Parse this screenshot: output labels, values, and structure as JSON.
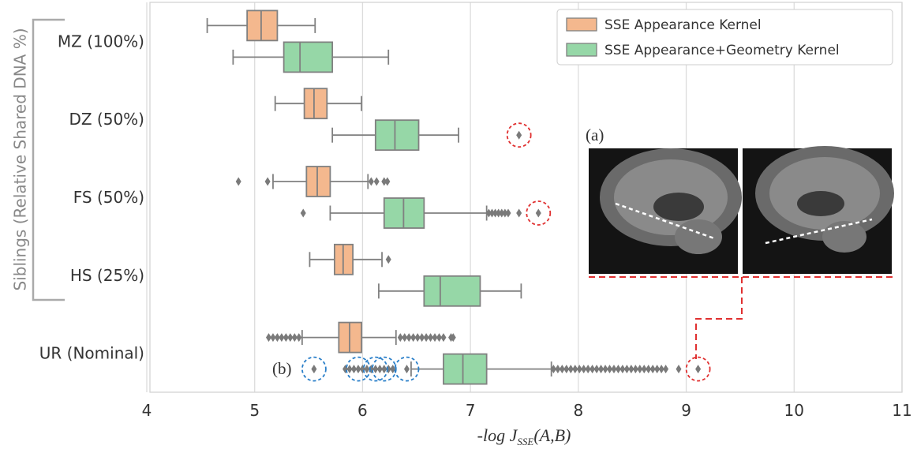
{
  "chart_data": {
    "type": "box",
    "categories": [
      "MZ (100%)",
      "DZ (50%)",
      "FS (50%)",
      "HS (25%)",
      "UR (Nominal)"
    ],
    "group_label": "Siblings  (Relative Shared DNA %)",
    "xlabel": {
      "main": "-log J",
      "sub": "SSE",
      "tail": "(A,B)"
    },
    "xlim": [
      4,
      11
    ],
    "xticks": [
      4,
      5,
      6,
      7,
      8,
      9,
      10,
      11
    ],
    "grid": true,
    "legend": "upper right",
    "annotations": {
      "a": "(a)",
      "b": "(b)"
    },
    "series": [
      {
        "name": "SSE Appearance Kernel",
        "color": "#f4b88e",
        "boxes": [
          {
            "whislo": 4.56,
            "q1": 4.93,
            "med": 5.06,
            "q3": 5.21,
            "whishi": 5.56,
            "fliers": []
          },
          {
            "whislo": 5.19,
            "q1": 5.46,
            "med": 5.55,
            "q3": 5.67,
            "whishi": 5.99,
            "fliers": []
          },
          {
            "whislo": 5.17,
            "q1": 5.48,
            "med": 5.58,
            "q3": 5.7,
            "whishi": 6.05,
            "fliers": [
              4.85,
              5.12,
              6.08,
              6.13,
              6.2,
              6.23
            ]
          },
          {
            "whislo": 5.51,
            "q1": 5.74,
            "med": 5.82,
            "q3": 5.91,
            "whishi": 6.18,
            "fliers": [
              6.24
            ]
          },
          {
            "whislo": 5.44,
            "q1": 5.78,
            "med": 5.88,
            "q3": 5.99,
            "whishi": 6.31,
            "fliers": [
              5.13,
              5.17,
              5.21,
              5.25,
              5.29,
              5.33,
              5.37,
              5.41,
              6.35,
              6.39,
              6.43,
              6.47,
              6.51,
              6.55,
              6.59,
              6.63,
              6.67,
              6.71,
              6.75,
              6.82,
              6.84
            ]
          }
        ]
      },
      {
        "name": "SSE Appearance+Geometry Kernel",
        "color": "#96d7a7",
        "boxes": [
          {
            "whislo": 4.8,
            "q1": 5.27,
            "med": 5.42,
            "q3": 5.72,
            "whishi": 6.24,
            "fliers": []
          },
          {
            "whislo": 5.72,
            "q1": 6.12,
            "med": 6.3,
            "q3": 6.52,
            "whishi": 6.89,
            "fliers": [
              7.45
            ]
          },
          {
            "whislo": 5.7,
            "q1": 6.2,
            "med": 6.38,
            "q3": 6.57,
            "whishi": 7.15,
            "fliers": [
              5.45,
              7.17,
              7.2,
              7.23,
              7.26,
              7.29,
              7.32,
              7.35,
              7.45,
              7.63
            ]
          },
          {
            "whislo": 6.15,
            "q1": 6.57,
            "med": 6.72,
            "q3": 7.09,
            "whishi": 7.47,
            "fliers": []
          },
          {
            "whislo": 6.45,
            "q1": 6.75,
            "med": 6.93,
            "q3": 7.15,
            "whishi": 7.75,
            "fliers": [
              5.55,
              5.84,
              5.88,
              5.92,
              5.96,
              6.0,
              6.04,
              6.08,
              6.12,
              6.16,
              6.2,
              6.24,
              6.28,
              6.41,
              7.77,
              7.81,
              7.85,
              7.89,
              7.93,
              7.97,
              8.01,
              8.05,
              8.09,
              8.13,
              8.17,
              8.21,
              8.25,
              8.29,
              8.33,
              8.37,
              8.41,
              8.45,
              8.49,
              8.53,
              8.57,
              8.61,
              8.65,
              8.69,
              8.73,
              8.77,
              8.81,
              8.93,
              9.11
            ]
          }
        ]
      }
    ]
  }
}
